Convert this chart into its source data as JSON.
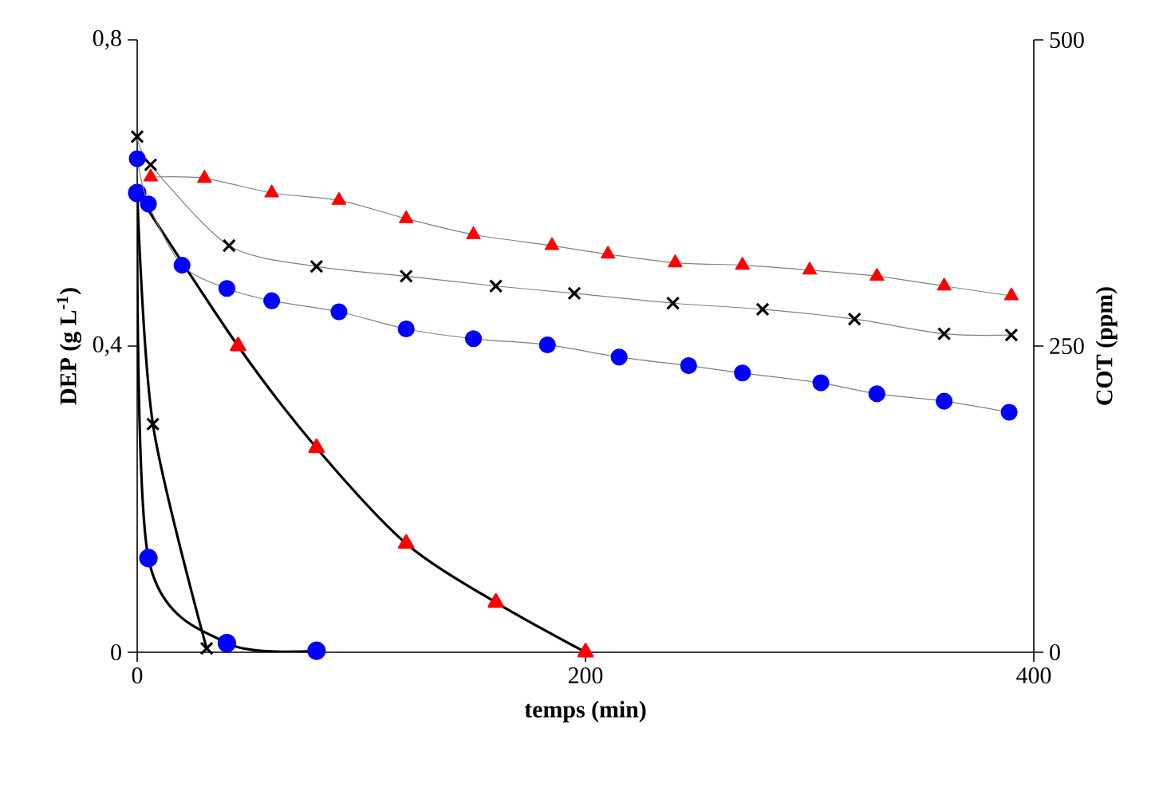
{
  "chart_data": {
    "type": "line",
    "xlabel": "temps (min)",
    "ylabel": "DEP (g L$^{-1}$)",
    "y2label": "COT (ppm)",
    "xlim": [
      0,
      400
    ],
    "xticks": [
      0,
      200,
      400
    ],
    "ylim": [
      0,
      0.8
    ],
    "yticks": [
      0,
      {
        "value": 0.4,
        "label": "0,4"
      },
      {
        "value": 0.8,
        "label": "0,8"
      }
    ],
    "y2lim": [
      0,
      500
    ],
    "y2ticks": [
      0,
      250,
      500
    ],
    "series": [
      {
        "color": "#ff0000",
        "marker": "triangle",
        "x": [
          0,
          45,
          80,
          120,
          160,
          200
        ],
        "values": [
          0.6,
          0.4,
          0.267,
          0.142,
          0.065,
          0
        ]
      },
      {
        "color": "#000000",
        "marker": "cross",
        "x": [
          0,
          7,
          31
        ],
        "values": [
          0.6,
          0.298,
          0.005
        ]
      },
      {
        "color": "#0000ff",
        "marker": "circle",
        "x": [
          0,
          5,
          40,
          80
        ],
        "values": [
          0.6,
          0.123,
          0.012,
          0.002
        ]
      },
      {
        "color": "#ff0000",
        "marker": "triangle",
        "axis": "y2",
        "x": [
          6,
          30,
          60,
          90,
          120,
          150,
          185,
          210,
          240,
          270,
          300,
          330,
          360,
          390
        ],
        "values": [
          388,
          387,
          375,
          369,
          354,
          341,
          332,
          325,
          318,
          316,
          312,
          307,
          299,
          291
        ]
      },
      {
        "color": "#000000",
        "marker": "cross",
        "axis": "y2",
        "x": [
          0,
          6,
          41,
          80,
          120,
          160,
          195,
          239,
          279,
          320,
          360,
          390
        ],
        "values": [
          421,
          398,
          332,
          315,
          307,
          299,
          293,
          285,
          280,
          272,
          260,
          259
        ]
      },
      {
        "color": "#0000ff",
        "marker": "circle",
        "axis": "y2",
        "x": [
          0,
          5,
          20,
          40,
          60,
          90,
          120,
          150,
          183,
          215,
          246,
          270,
          305,
          330,
          360,
          389
        ],
        "values": [
          403,
          366,
          316,
          297,
          287,
          278,
          264,
          256,
          251,
          241,
          234,
          228,
          220,
          211,
          205,
          196
        ]
      }
    ]
  }
}
